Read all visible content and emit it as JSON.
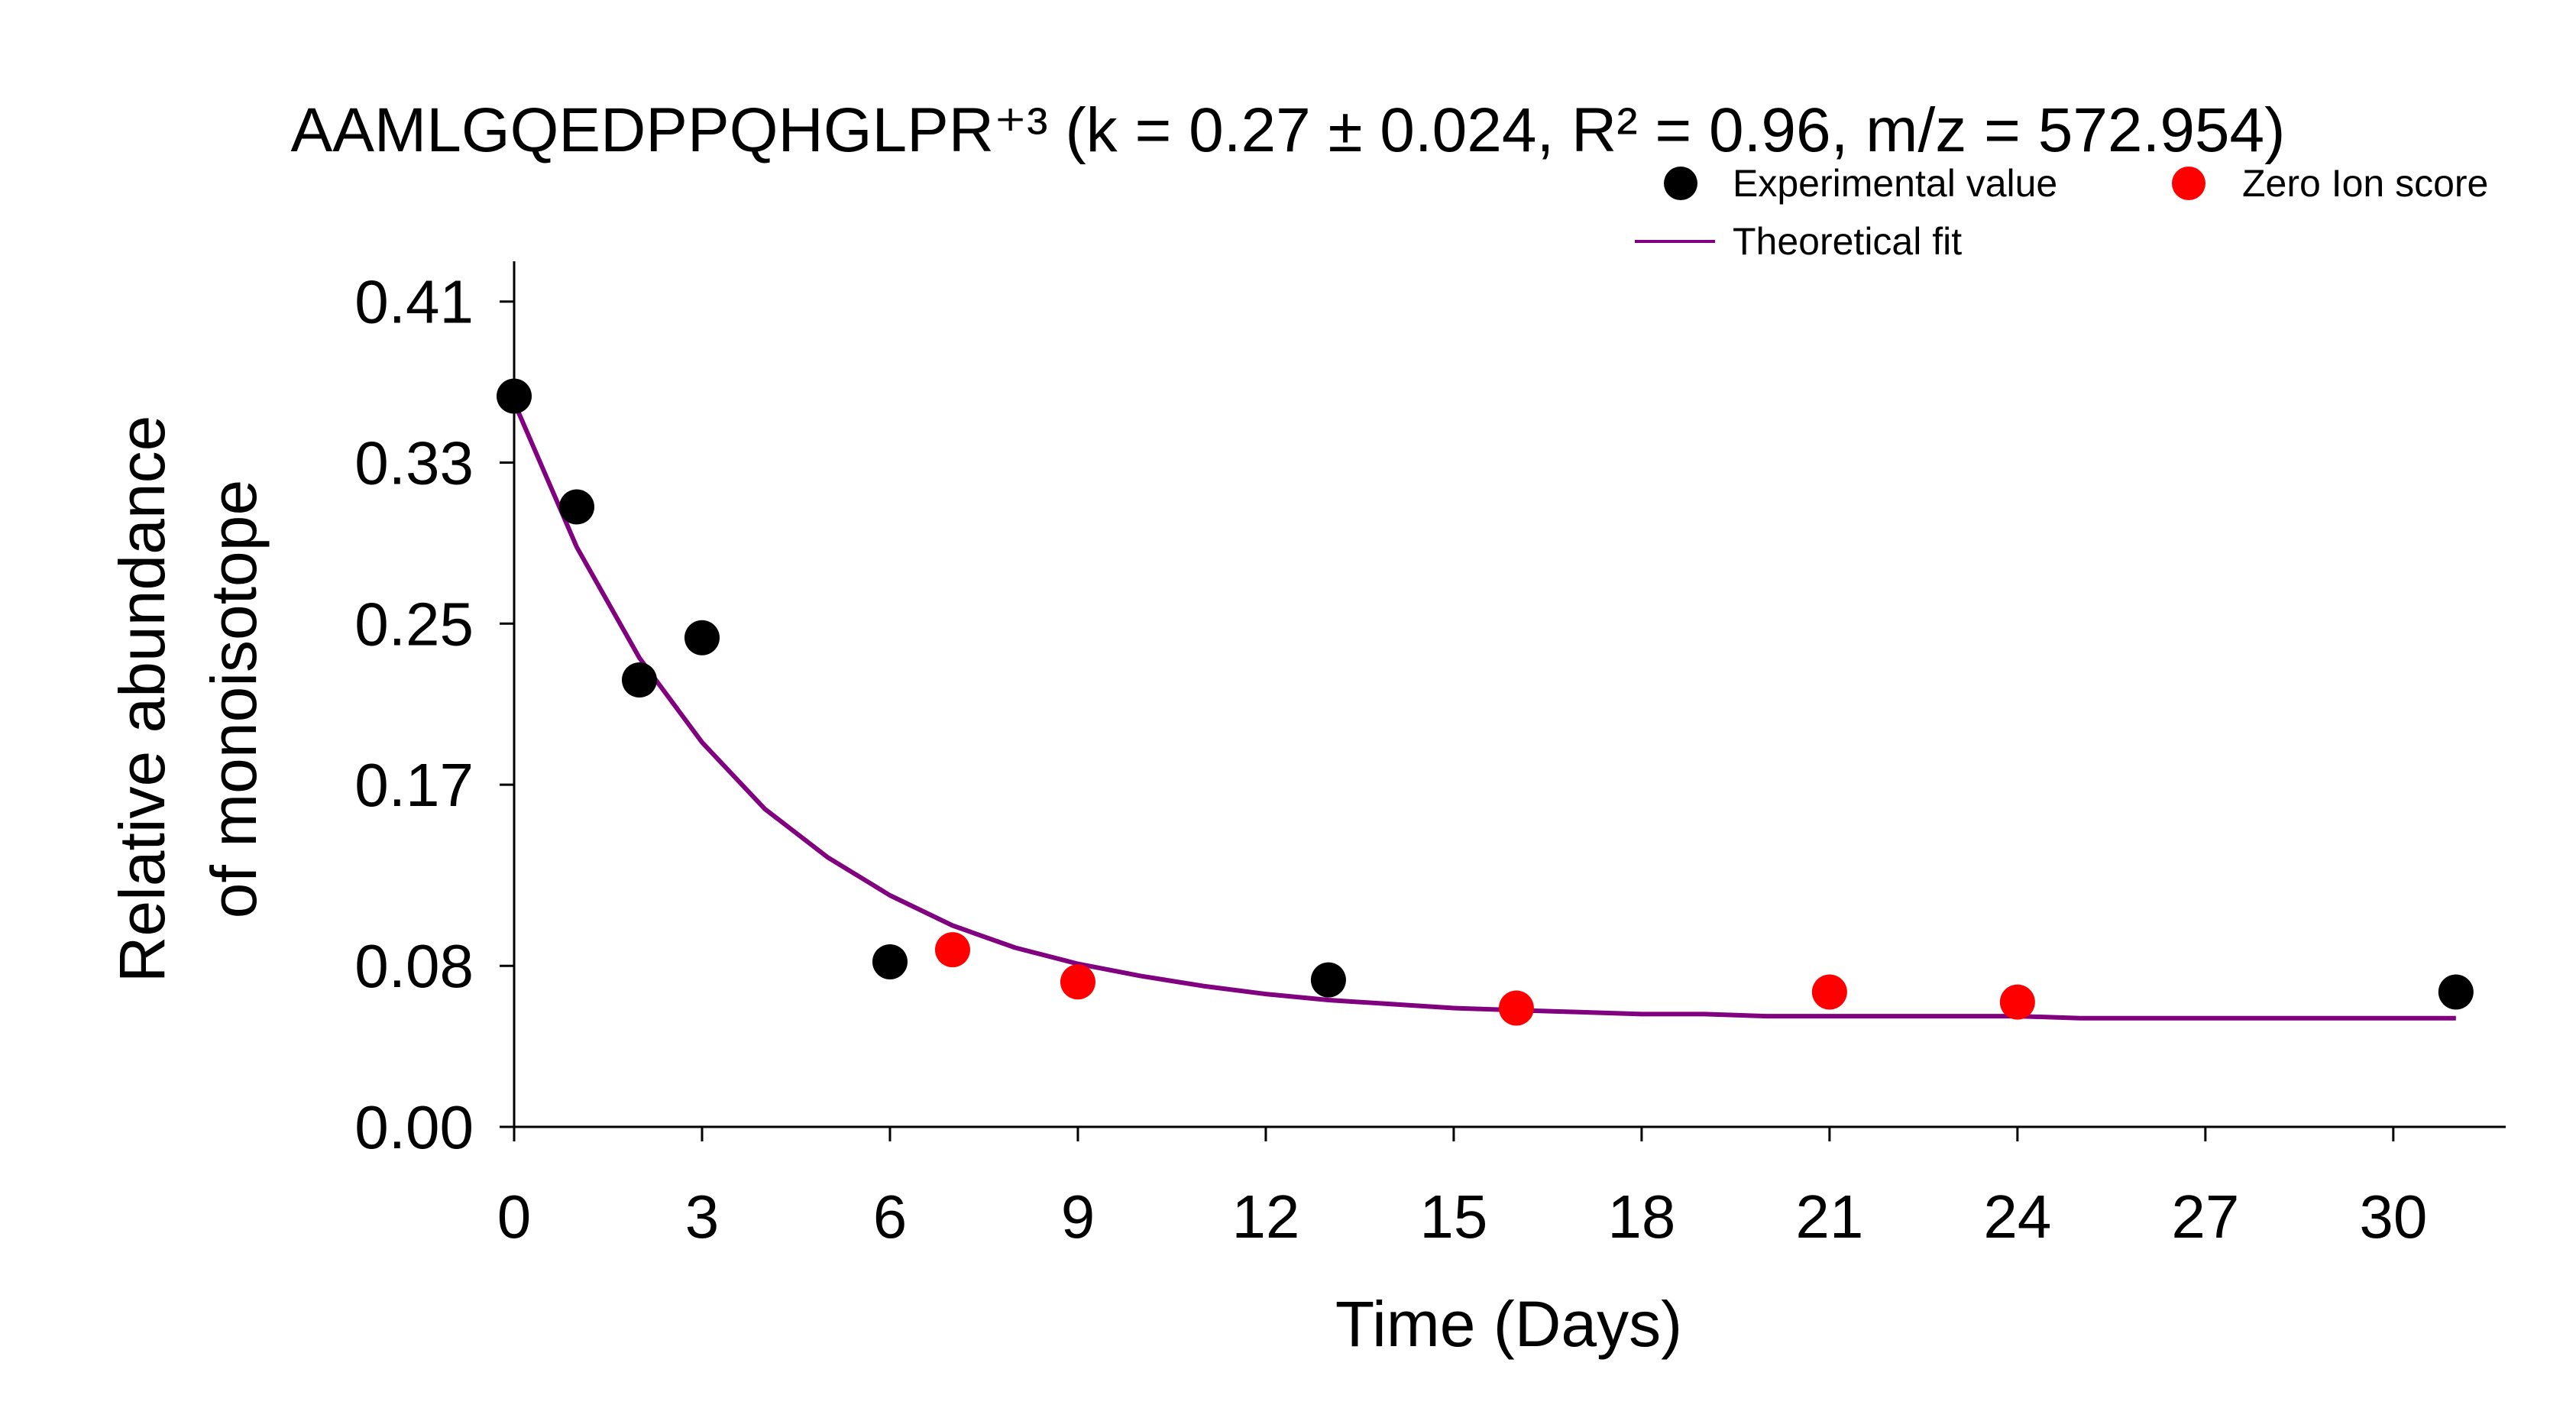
{
  "chart_data": {
    "type": "scatter",
    "title": "AAMLGQEDPPQHGLPR⁺³ (k = 0.27 ± 0.024, R² = 0.96, m/z = 572.954)",
    "xlabel": "Time (Days)",
    "ylabel_lines": [
      "Relative abundance",
      "of monoisotope"
    ],
    "xlim": [
      0,
      31
    ],
    "ylim": [
      0,
      0.43
    ],
    "x_ticks": [
      0,
      3,
      6,
      9,
      12,
      15,
      18,
      21,
      24,
      27,
      30
    ],
    "x_tick_labels": [
      "0",
      "3",
      "6",
      "9",
      "12",
      "15",
      "18",
      "21",
      "24",
      "27",
      "30"
    ],
    "y_ticks": [
      0.0,
      0.08,
      0.17,
      0.25,
      0.33,
      0.41
    ],
    "y_tick_labels": [
      "0.00",
      "0.08",
      "0.17",
      "0.25",
      "0.33",
      "0.41"
    ],
    "grid": false,
    "legend_position": "top-right",
    "series": [
      {
        "name": "Experimental value",
        "kind": "scatter",
        "color": "#000000",
        "x": [
          0,
          1,
          2,
          3,
          6,
          13,
          31
        ],
        "y": [
          0.363,
          0.308,
          0.222,
          0.243,
          0.082,
          0.073,
          0.067
        ]
      },
      {
        "name": "Zero Ion score",
        "kind": "scatter",
        "color": "#ff0000",
        "x": [
          7,
          9,
          16,
          21,
          24
        ],
        "y": [
          0.088,
          0.072,
          0.059,
          0.067,
          0.062
        ]
      },
      {
        "name": "Theoretical fit",
        "kind": "line",
        "color": "#800080",
        "x": [
          0,
          1,
          2,
          3,
          4,
          5,
          6,
          7,
          8,
          9,
          10,
          11,
          12,
          13,
          14,
          15,
          16,
          17,
          18,
          19,
          20,
          21,
          22,
          23,
          24,
          25,
          26,
          27,
          28,
          29,
          30,
          31
        ],
        "y": [
          0.36,
          0.288,
          0.233,
          0.191,
          0.158,
          0.134,
          0.115,
          0.1,
          0.089,
          0.081,
          0.075,
          0.07,
          0.066,
          0.063,
          0.061,
          0.059,
          0.058,
          0.057,
          0.056,
          0.056,
          0.055,
          0.055,
          0.055,
          0.055,
          0.055,
          0.054,
          0.054,
          0.054,
          0.054,
          0.054,
          0.054,
          0.054
        ]
      }
    ]
  }
}
